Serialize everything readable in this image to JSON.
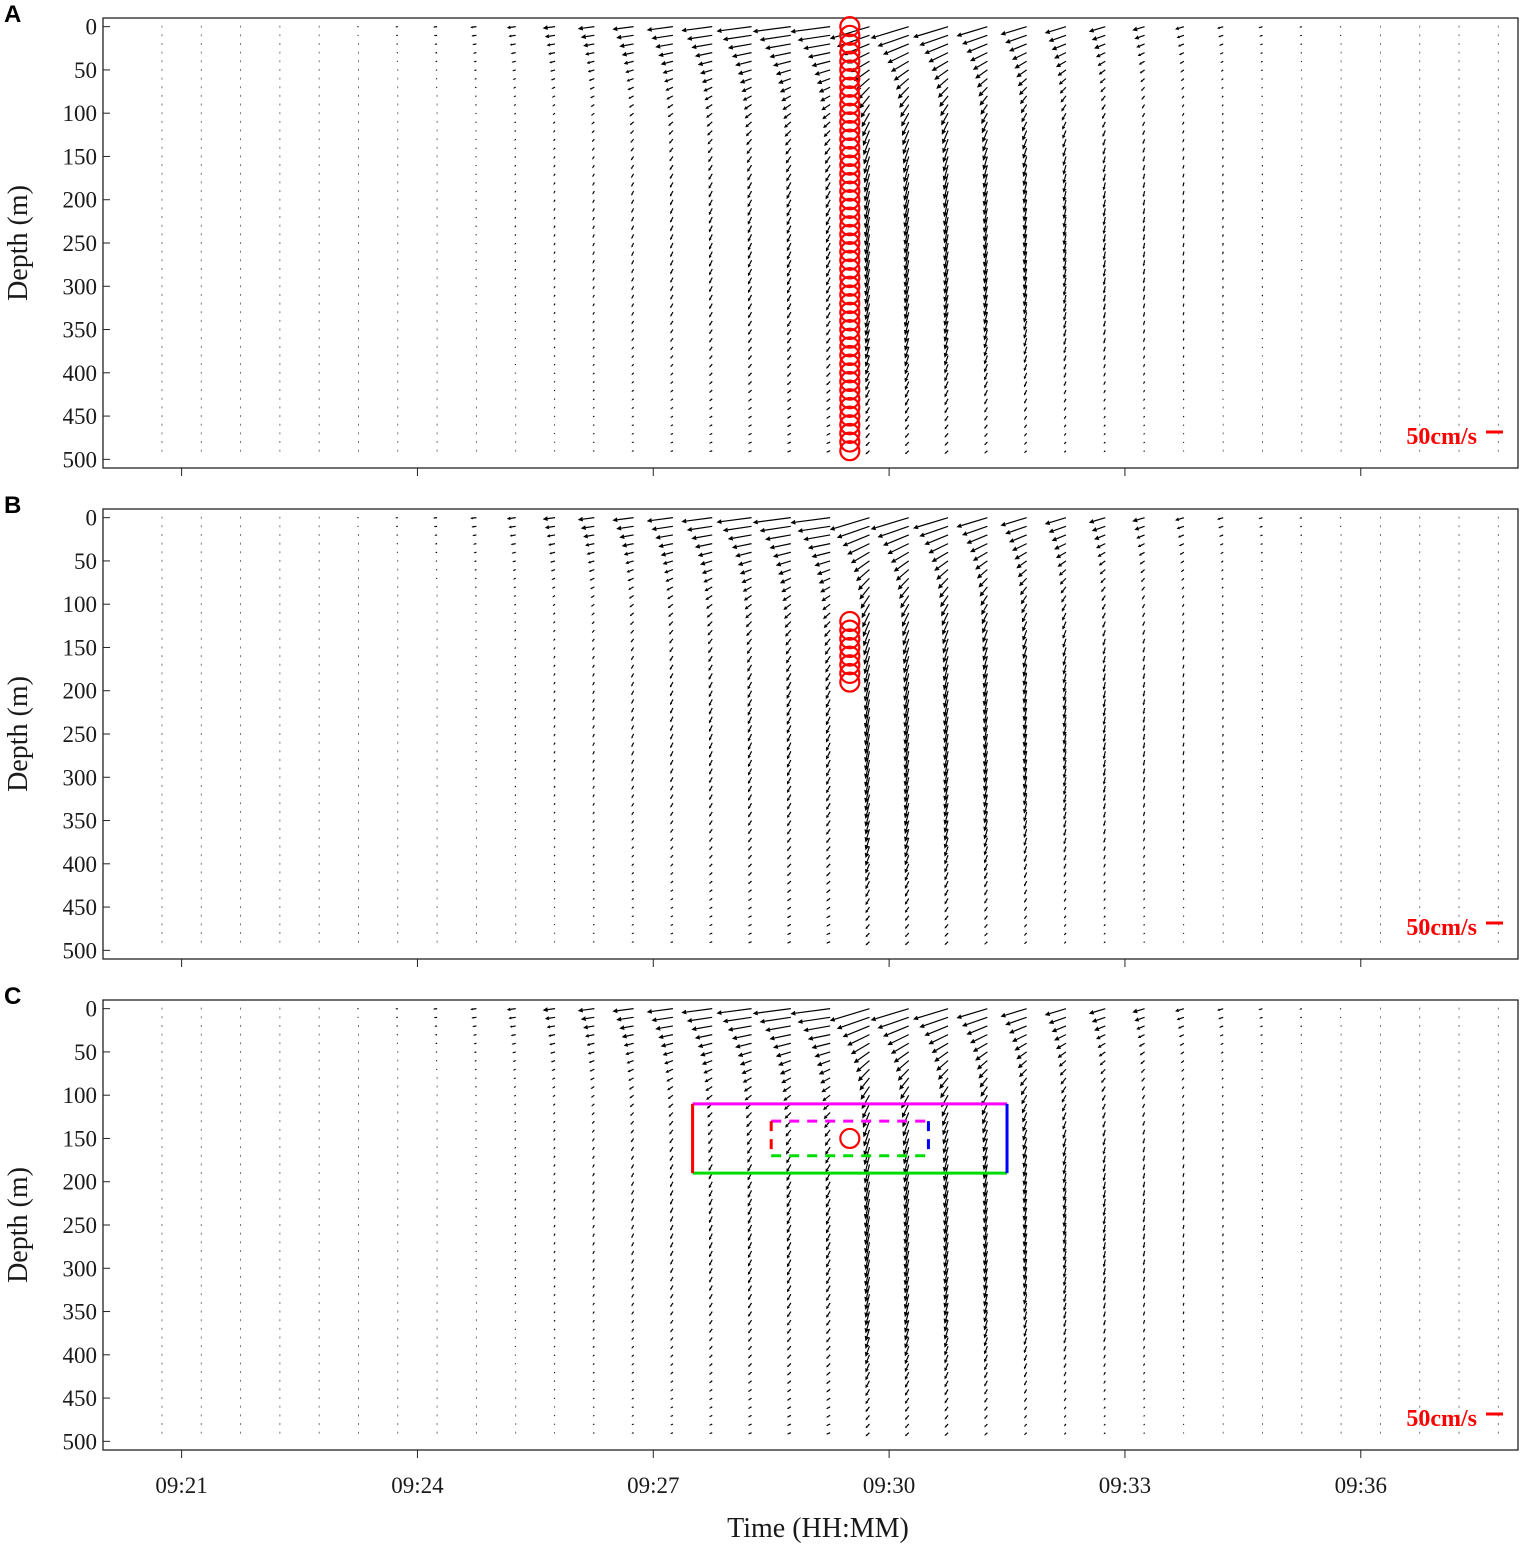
{
  "chart_data": {
    "type": "quiver",
    "shared_x": {
      "label": "Time (HH:MM)",
      "tick_labels": [
        "09:21",
        "09:24",
        "09:27",
        "09:30",
        "09:33",
        "09:36"
      ],
      "tick_minutes": [
        561,
        564,
        567,
        570,
        573,
        576
      ],
      "range_minutes": [
        560.0,
        578.0
      ]
    },
    "shared_y": {
      "label": "Depth (m)",
      "tick_labels": [
        "0",
        "50",
        "100",
        "150",
        "200",
        "250",
        "300",
        "350",
        "400",
        "450",
        "500"
      ],
      "ticks": [
        0,
        50,
        100,
        150,
        200,
        250,
        300,
        350,
        400,
        450,
        500
      ],
      "range": [
        -10,
        510
      ],
      "inverted": true
    },
    "profile_times_start_minutes": 560.75,
    "profile_interval_minutes": 0.5,
    "profile_count": 35,
    "depth_bins_m": {
      "start": 0,
      "step": 10,
      "count": 50
    },
    "wave_center_minutes": 569.5,
    "scale_bar": {
      "label": "50cm/s",
      "color": "#ff0000"
    },
    "panels": [
      {
        "letter": "A",
        "highlight_time_minutes": 569.5,
        "highlight_depths_m": [
          0,
          10,
          20,
          30,
          40,
          50,
          60,
          70,
          80,
          90,
          100,
          110,
          120,
          130,
          140,
          150,
          160,
          170,
          180,
          190,
          200,
          210,
          220,
          230,
          240,
          250,
          260,
          270,
          280,
          290,
          300,
          310,
          320,
          330,
          340,
          350,
          360,
          370,
          380,
          390,
          400,
          410,
          420,
          430,
          440,
          450,
          460,
          470,
          480,
          490
        ],
        "highlight_color": "#ff0000"
      },
      {
        "letter": "B",
        "highlight_time_minutes": 569.5,
        "highlight_depths_m": [
          120,
          130,
          140,
          150,
          160,
          170,
          180,
          190
        ],
        "highlight_color": "#ff0000"
      },
      {
        "letter": "C",
        "highlight_time_minutes": 569.5,
        "highlight_depths_m": [
          150
        ],
        "highlight_color": "#ff0000",
        "outer_box": {
          "t0": 567.5,
          "t1": 571.5,
          "d0": 110,
          "d1": 190,
          "top_color": "#ff00ff",
          "bottom_color": "#00dd00",
          "left_color": "#ff0000",
          "right_color": "#0000ff",
          "dashed": false
        },
        "inner_box": {
          "t0": 568.5,
          "t1": 570.5,
          "d0": 130,
          "d1": 170,
          "top_color": "#ff00ff",
          "bottom_color": "#00dd00",
          "left_color": "#ff0000",
          "right_color": "#0000ff",
          "dashed": true
        }
      }
    ]
  }
}
